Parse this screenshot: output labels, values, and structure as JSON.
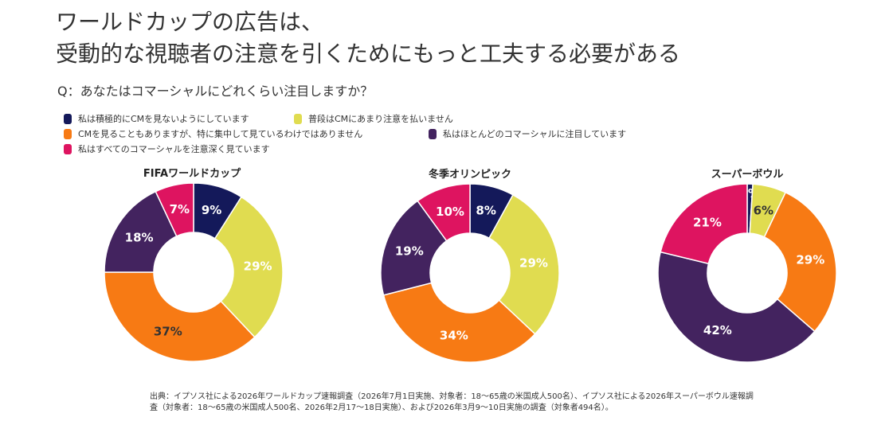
{
  "title": {
    "line1": "ワールドカップの広告は、",
    "line2": "受動的な視聴者の注意を引くためにもっと工夫する必要がある"
  },
  "question": "Q：あなたはコマーシャルにどれくらい注目しますか？",
  "legend": [
    {
      "label": "私は積極的にCMを見ないようにしています",
      "color": "#14195a"
    },
    {
      "label": "普段はCMにあまり注意を払いません",
      "color": "#e0dc50"
    },
    {
      "label": "CMを見ることもありますが、特に集中して見ているわけではありません",
      "color": "#f77a14"
    },
    {
      "label": "私はほとんどのコマーシャルに注目しています",
      "color": "#43235f"
    },
    {
      "label": "私はすべてのコマーシャルを注意深く見ています",
      "color": "#de1460"
    }
  ],
  "chart_data": [
    {
      "type": "pie",
      "title": "FIFAワールドカップ",
      "categories": [
        "私は積極的にCMを見ないようにしています",
        "普段はCMにあまり注意を払いません",
        "CMを見ることもありますが、特に集中して見ているわけではありません",
        "私はほとんどのコマーシャルに注目しています",
        "私はすべてのコマーシャルを注意深く見ています"
      ],
      "values": [
        9,
        29,
        37,
        18,
        7
      ],
      "labels": [
        "9%",
        "29%",
        "37%",
        "18%",
        "7%"
      ],
      "colors": [
        "#14195a",
        "#e0dc50",
        "#f77a14",
        "#43235f",
        "#de1460"
      ],
      "label_colors": [
        "#ffffff",
        "#ffffff",
        "#333333",
        "#ffffff",
        "#ffffff"
      ]
    },
    {
      "type": "pie",
      "title": "冬季オリンピック",
      "categories": [
        "私は積極的にCMを見ないようにしています",
        "普段はCMにあまり注意を払いません",
        "CMを見ることもありますが、特に集中して見ているわけではありません",
        "私はほとんどのコマーシャルに注目しています",
        "私はすべてのコマーシャルを注意深く見ています"
      ],
      "values": [
        8,
        29,
        34,
        19,
        10
      ],
      "labels": [
        "8%",
        "29%",
        "34%",
        "19%",
        "10%"
      ],
      "colors": [
        "#14195a",
        "#e0dc50",
        "#f77a14",
        "#43235f",
        "#de1460"
      ],
      "label_colors": [
        "#ffffff",
        "#ffffff",
        "#ffffff",
        "#ffffff",
        "#ffffff"
      ]
    },
    {
      "type": "pie",
      "title": "スーパーボウル",
      "categories": [
        "私は積極的にCMを見ないようにしています",
        "普段はCMにあまり注意を払いません",
        "CMを見ることもありますが、特に集中して見ているわけではありません",
        "私はほとんどのコマーシャルに注目しています",
        "私はすべてのコマーシャルを注意深く見ています"
      ],
      "values": [
        1,
        6,
        29,
        42,
        21
      ],
      "labels": [
        "1%",
        "6%",
        "29%",
        "42%",
        "21%"
      ],
      "colors": [
        "#14195a",
        "#e0dc50",
        "#f77a14",
        "#43235f",
        "#de1460"
      ],
      "label_colors": [
        "#ffffff",
        "#333333",
        "#ffffff",
        "#ffffff",
        "#ffffff"
      ]
    }
  ],
  "source": "出典：イプソス社による2026年ワールドカップ速報調査（2026年7月1日実施、対象者：18〜65歳の米国成人500名）、イプソス社による2026年スーパーボウル速報調査（対象者：18〜65歳の米国成人500名、2026年2月17〜18日実施）、および2026年3月9〜10日実施の調査（対象者494名）。"
}
